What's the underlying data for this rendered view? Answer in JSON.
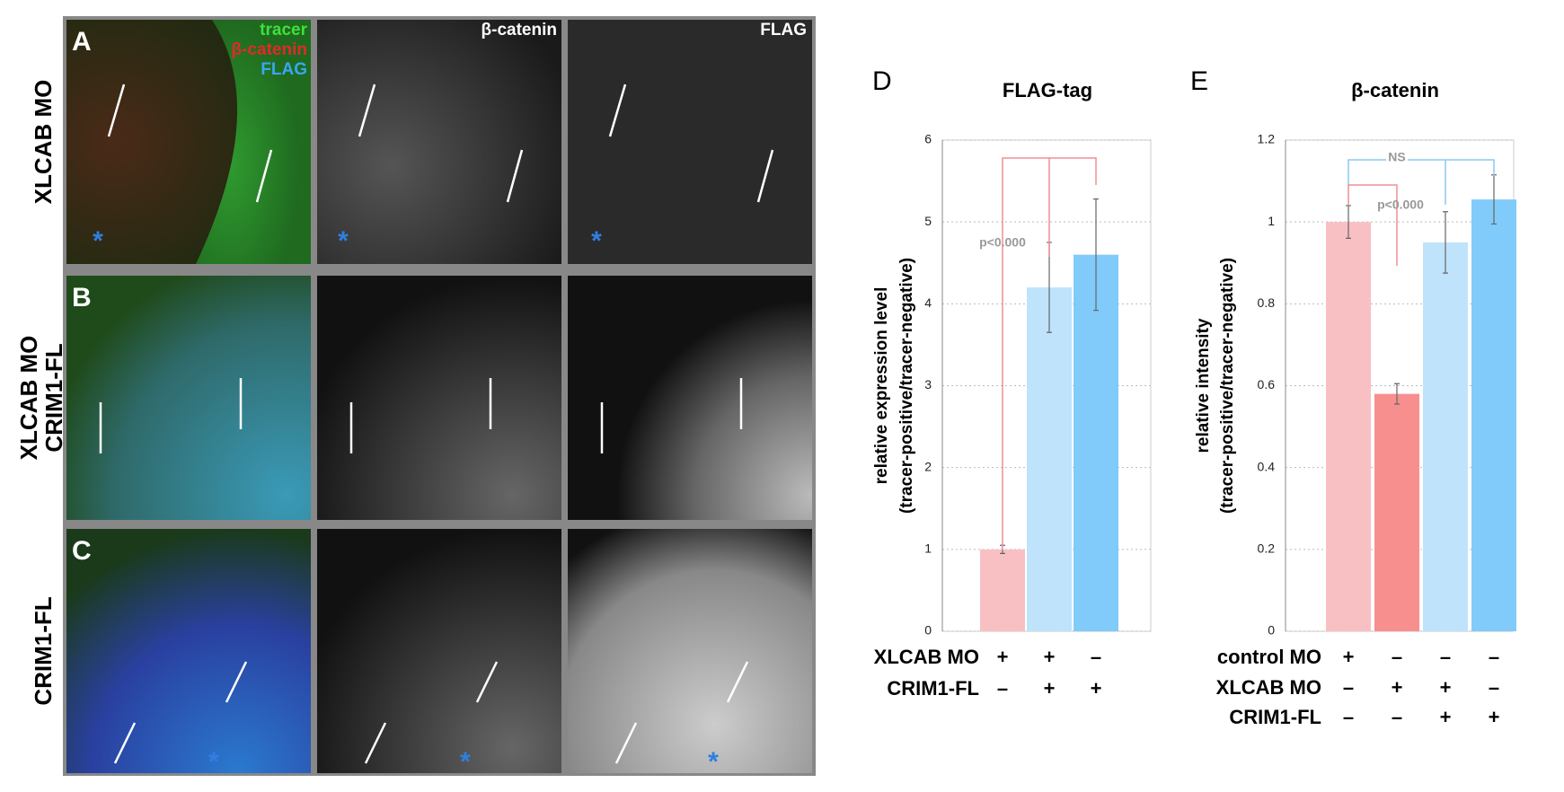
{
  "figure": {
    "panels": [
      "A",
      "B",
      "C"
    ],
    "row_labels": [
      [
        "XLCAB MO"
      ],
      [
        "XLCAB MO",
        "CRIM1-FL"
      ],
      [
        "CRIM1-FL"
      ]
    ],
    "channel_legend": [
      "tracer",
      "β-catenin",
      "FLAG"
    ],
    "column_headers": [
      "β-catenin",
      "FLAG"
    ],
    "asterisk": "*"
  },
  "chart_data": [
    {
      "type": "bar",
      "panel": "D",
      "title": "FLAG-tag",
      "ylabel": [
        "relative expression level",
        "(tracer-positive/tracer-negative)"
      ],
      "categories": [
        null,
        null,
        null
      ],
      "values": [
        1,
        4.2,
        4.6
      ],
      "errors": [
        0.05,
        0.55,
        0.68
      ],
      "colors": [
        "#f9c0c4",
        "#bfe3fb",
        "#80cbfa"
      ],
      "ylim": [
        0,
        6
      ],
      "yticks": [
        0,
        1,
        2,
        3,
        4,
        5,
        6
      ],
      "grid": true,
      "annotations": [
        "p<0.000"
      ],
      "conditions": [
        {
          "label": "XLCAB MO",
          "signs": [
            "+",
            "+",
            "–"
          ]
        },
        {
          "label": "CRIM1-FL",
          "signs": [
            "–",
            "+",
            "+"
          ]
        }
      ]
    },
    {
      "type": "bar",
      "panel": "E",
      "title": "β-catenin",
      "ylabel": [
        "relative intensity",
        "(tracer-positive/tracer-negative)"
      ],
      "categories": [
        null,
        null,
        null,
        null
      ],
      "values": [
        1,
        0.58,
        0.95,
        1.055
      ],
      "errors": [
        0.04,
        0.025,
        0.075,
        0.06
      ],
      "colors": [
        "#f9c0c4",
        "#f88f8f",
        "#bfe3fb",
        "#80cbfa"
      ],
      "ylim": [
        0,
        1.2
      ],
      "yticks": [
        0,
        0.2,
        0.4,
        0.6,
        0.8,
        1,
        1.2
      ],
      "grid": true,
      "annotations": [
        "NS",
        "p<0.000"
      ],
      "conditions": [
        {
          "label": "control MO",
          "signs": [
            "+",
            "–",
            "–",
            "–"
          ]
        },
        {
          "label": "XLCAB MO",
          "signs": [
            "–",
            "+",
            "+",
            "–"
          ]
        },
        {
          "label": "CRIM1-FL",
          "signs": [
            "–",
            "–",
            "+",
            "+"
          ]
        }
      ]
    }
  ]
}
